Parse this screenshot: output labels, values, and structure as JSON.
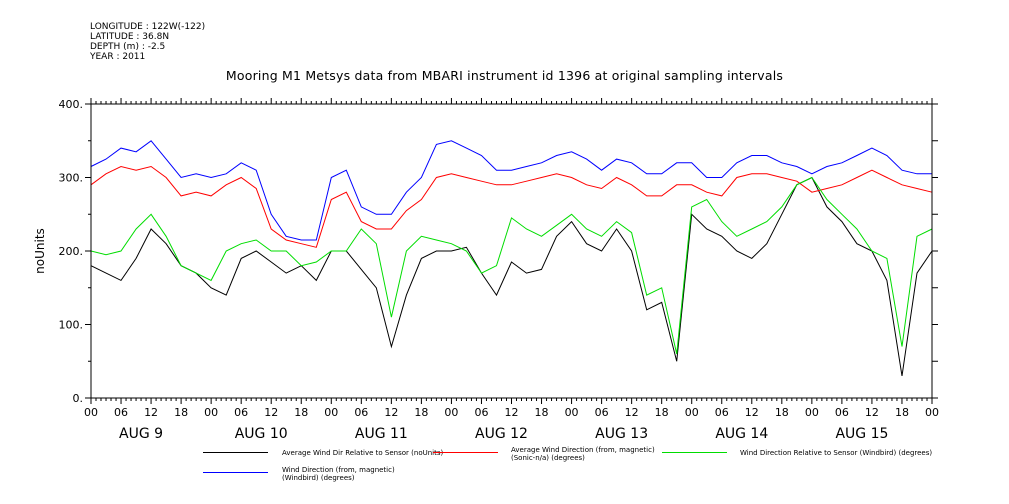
{
  "meta": [
    "LONGITUDE : 122W(-122)",
    "LATITUDE : 36.8N",
    "DEPTH (m) : -2.5",
    "YEAR : 2011"
  ],
  "chart_data": {
    "type": "line",
    "title": "Mooring M1 Metsys data from MBARI instrument id 1396 at original sampling intervals",
    "ylabel": "noUnits",
    "xlabel": "",
    "ylim": [
      0,
      400
    ],
    "yticks": [
      0,
      100,
      200,
      300,
      400
    ],
    "ytick_labels": [
      "0.",
      "100.",
      "200.",
      "300.",
      "400."
    ],
    "xlim_hours": [
      0,
      168
    ],
    "hour_ticks": [
      "00",
      "06",
      "12",
      "18",
      "00",
      "06",
      "12",
      "18",
      "00",
      "06",
      "12",
      "18",
      "00",
      "06",
      "12",
      "18",
      "00",
      "06",
      "12",
      "18",
      "00",
      "06",
      "12",
      "18",
      "00",
      "06",
      "12",
      "18",
      "00"
    ],
    "day_labels": [
      "AUG  9",
      "AUG 10",
      "AUG 11",
      "AUG 12",
      "AUG 13",
      "AUG 14",
      "AUG 15"
    ],
    "grid": false,
    "series": [
      {
        "name": "Average Wind Dir Relative to Sensor (noUnits)",
        "color": "#000000",
        "x": [
          0,
          3,
          6,
          9,
          12,
          15,
          18,
          21,
          24,
          27,
          30,
          33,
          36,
          39,
          42,
          45,
          48,
          51,
          54,
          57,
          60,
          63,
          66,
          69,
          72,
          75,
          78,
          81,
          84,
          87,
          90,
          93,
          96,
          99,
          102,
          105,
          108,
          111,
          114,
          117,
          120,
          123,
          126,
          129,
          132,
          135,
          138,
          141,
          144,
          147,
          150,
          153,
          156,
          159,
          162,
          165,
          168
        ],
        "values": [
          180,
          170,
          160,
          190,
          230,
          210,
          180,
          170,
          150,
          140,
          190,
          200,
          185,
          170,
          180,
          160,
          200,
          200,
          175,
          150,
          70,
          140,
          190,
          200,
          200,
          205,
          170,
          140,
          185,
          170,
          175,
          220,
          240,
          210,
          200,
          230,
          200,
          120,
          130,
          50,
          250,
          230,
          220,
          200,
          190,
          210,
          250,
          290,
          300,
          260,
          240,
          210,
          200,
          160,
          30,
          170,
          200
        ]
      },
      {
        "name": "Average Wind Direction (from, magnetic) (Sonic-n/a) (degrees)",
        "color": "#ff0000",
        "x": [
          0,
          3,
          6,
          9,
          12,
          15,
          18,
          21,
          24,
          27,
          30,
          33,
          36,
          39,
          42,
          45,
          48,
          51,
          54,
          57,
          60,
          63,
          66,
          69,
          72,
          75,
          78,
          81,
          84,
          87,
          90,
          93,
          96,
          99,
          102,
          105,
          108,
          111,
          114,
          117,
          120,
          123,
          126,
          129,
          132,
          135,
          138,
          141,
          144,
          147,
          150,
          153,
          156,
          159,
          162,
          165,
          168
        ],
        "values": [
          290,
          305,
          315,
          310,
          315,
          300,
          275,
          280,
          275,
          290,
          300,
          285,
          230,
          215,
          210,
          205,
          270,
          280,
          240,
          230,
          230,
          255,
          270,
          300,
          305,
          300,
          295,
          290,
          290,
          295,
          300,
          305,
          300,
          290,
          285,
          300,
          290,
          275,
          275,
          290,
          290,
          280,
          275,
          300,
          305,
          305,
          300,
          295,
          280,
          285,
          290,
          300,
          310,
          300,
          290,
          285,
          280
        ]
      },
      {
        "name": "Wind Direction Relative to Sensor (Windbird) (degrees)",
        "color": "#00dd00",
        "x": [
          0,
          3,
          6,
          9,
          12,
          15,
          18,
          21,
          24,
          27,
          30,
          33,
          36,
          39,
          42,
          45,
          48,
          51,
          54,
          57,
          60,
          63,
          66,
          69,
          72,
          75,
          78,
          81,
          84,
          87,
          90,
          93,
          96,
          99,
          102,
          105,
          108,
          111,
          114,
          117,
          120,
          123,
          126,
          129,
          132,
          135,
          138,
          141,
          144,
          147,
          150,
          153,
          156,
          159,
          162,
          165,
          168
        ],
        "values": [
          200,
          195,
          200,
          230,
          250,
          220,
          180,
          170,
          160,
          200,
          210,
          215,
          200,
          200,
          180,
          185,
          200,
          200,
          230,
          210,
          110,
          200,
          220,
          215,
          210,
          200,
          170,
          180,
          245,
          230,
          220,
          235,
          250,
          230,
          220,
          240,
          225,
          140,
          150,
          60,
          260,
          270,
          240,
          220,
          230,
          240,
          260,
          290,
          300,
          270,
          250,
          230,
          200,
          190,
          70,
          220,
          230
        ]
      },
      {
        "name": "Wind Direction (from, magnetic) (Windbird) (degrees)",
        "color": "#0000ff",
        "x": [
          0,
          3,
          6,
          9,
          12,
          15,
          18,
          21,
          24,
          27,
          30,
          33,
          36,
          39,
          42,
          45,
          48,
          51,
          54,
          57,
          60,
          63,
          66,
          69,
          72,
          75,
          78,
          81,
          84,
          87,
          90,
          93,
          96,
          99,
          102,
          105,
          108,
          111,
          114,
          117,
          120,
          123,
          126,
          129,
          132,
          135,
          138,
          141,
          144,
          147,
          150,
          153,
          156,
          159,
          162,
          165,
          168
        ],
        "values": [
          315,
          325,
          340,
          335,
          350,
          325,
          300,
          305,
          300,
          305,
          320,
          310,
          250,
          220,
          215,
          215,
          300,
          310,
          260,
          250,
          250,
          280,
          300,
          345,
          350,
          340,
          330,
          310,
          310,
          315,
          320,
          330,
          335,
          325,
          310,
          325,
          320,
          305,
          305,
          320,
          320,
          300,
          300,
          320,
          330,
          330,
          320,
          315,
          305,
          315,
          320,
          330,
          340,
          330,
          310,
          305,
          305
        ]
      }
    ]
  }
}
